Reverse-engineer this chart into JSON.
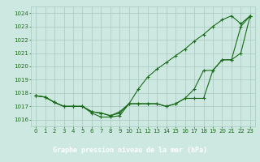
{
  "title": "Graphe pression niveau de la mer (hPa)",
  "x_hours": [
    0,
    1,
    2,
    3,
    4,
    5,
    6,
    7,
    8,
    9,
    10,
    11,
    12,
    13,
    14,
    15,
    16,
    17,
    18,
    19,
    20,
    21,
    22,
    23
  ],
  "line1": [
    1017.8,
    1017.7,
    1017.3,
    1017.0,
    1017.0,
    1017.0,
    1016.5,
    1016.2,
    1016.2,
    1016.3,
    1017.2,
    1018.3,
    1019.2,
    1019.8,
    1020.3,
    1020.8,
    1021.3,
    1021.9,
    1022.4,
    1023.0,
    1023.5,
    1023.8,
    1023.2,
    1023.8
  ],
  "line2": [
    1017.8,
    1017.7,
    1017.3,
    1017.0,
    1017.0,
    1017.0,
    1016.6,
    1016.5,
    1016.3,
    1016.5,
    1017.2,
    1017.2,
    1017.2,
    1017.2,
    1017.0,
    1017.2,
    1017.6,
    1018.3,
    1019.7,
    1019.7,
    1020.5,
    1020.5,
    1023.0,
    1023.8
  ],
  "line3": [
    1017.8,
    1017.7,
    1017.3,
    1017.0,
    1017.0,
    1017.0,
    1016.6,
    1016.5,
    1016.3,
    1016.6,
    1017.2,
    1017.2,
    1017.2,
    1017.2,
    1017.0,
    1017.2,
    1017.6,
    1017.6,
    1017.6,
    1019.7,
    1020.5,
    1020.5,
    1021.0,
    1023.8
  ],
  "line_color": "#1a6b1a",
  "bg_color": "#cce8e0",
  "grid_color": "#a8c8c0",
  "ylim": [
    1015.5,
    1024.5
  ],
  "xlim": [
    -0.5,
    23.5
  ],
  "yticks": [
    1016,
    1017,
    1018,
    1019,
    1020,
    1021,
    1022,
    1023,
    1024
  ],
  "xticks": [
    0,
    1,
    2,
    3,
    4,
    5,
    6,
    7,
    8,
    9,
    10,
    11,
    12,
    13,
    14,
    15,
    16,
    17,
    18,
    19,
    20,
    21,
    22,
    23
  ],
  "marker": "+",
  "markersize": 3,
  "linewidth": 0.8,
  "tick_fontsize": 5,
  "xlabel_fontsize": 6,
  "bottom_label_color": "#1a6b1a",
  "bottom_bg_color": "#2a7a2a"
}
